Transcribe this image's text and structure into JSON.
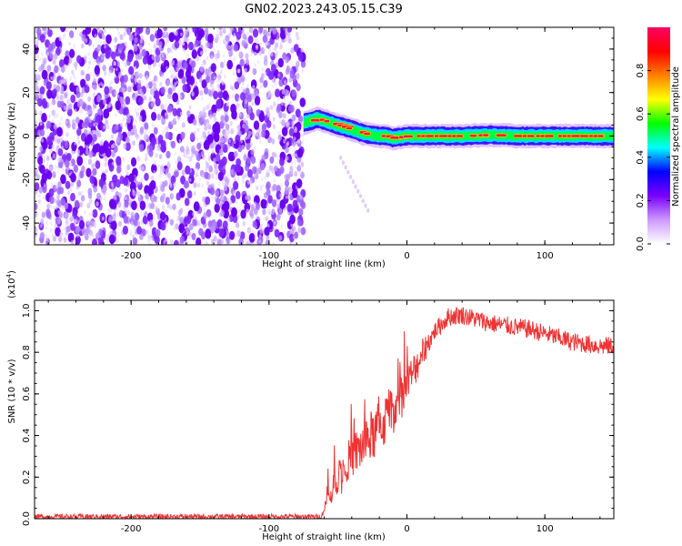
{
  "title": "GN02.2023.243.05.15.C39",
  "chart_data": [
    {
      "type": "heatmap",
      "xlabel": "Height of straight line (km)",
      "ylabel": "Frequency (Hz)",
      "xlim": [
        -270,
        150
      ],
      "ylim": [
        -50,
        50
      ],
      "xticks": [
        -200,
        -100,
        0,
        100
      ],
      "yticks": [
        -40,
        -20,
        0,
        20,
        40
      ],
      "noise_region_x": [
        -270,
        -75
      ],
      "signal_trace": {
        "x": [
          -75,
          -70,
          -65,
          -60,
          -55,
          -50,
          -45,
          -40,
          -35,
          -30,
          -25,
          -20,
          -15,
          -10,
          0,
          20,
          40,
          60,
          80,
          100,
          120,
          150
        ],
        "y": [
          6,
          7,
          8,
          7,
          6,
          5,
          4,
          3,
          2,
          1,
          0.5,
          0,
          0,
          -1,
          0,
          0,
          0,
          0.5,
          0,
          0,
          0,
          0
        ]
      },
      "colorbar": {
        "label": "Normalized spectral amplitude",
        "range": [
          0,
          1
        ],
        "ticks": [
          "0.0",
          "0.2",
          "0.4",
          "0.6",
          "0.8"
        ],
        "colors": [
          "#ffffff",
          "#cc99ff",
          "#7a00ff",
          "#0000ff",
          "#00ffff",
          "#00ff00",
          "#ffff00",
          "#ff8000",
          "#ff0000",
          "#ff0066"
        ]
      },
      "grid": false
    },
    {
      "type": "line",
      "xlabel": "Height of straight line (km)",
      "ylabel": "SNR (10 * v/v)",
      "y_multiplier": "(x10",
      "y_multiplier_exp": "4",
      "y_multiplier_close": ")",
      "xlim": [
        -270,
        150
      ],
      "ylim": [
        0,
        1.05
      ],
      "xticks": [
        -200,
        -100,
        0,
        100
      ],
      "yticks": [
        "0.0",
        "0.2",
        "0.4",
        "0.6",
        "0.8",
        "1.0"
      ],
      "line_color": "#ee3333",
      "series": [
        {
          "x": [
            -270,
            -200,
            -100,
            -62,
            -58,
            -55,
            -50,
            -45,
            -40,
            -35,
            -30,
            -25,
            -20,
            -15,
            -10,
            -5,
            0,
            10,
            20,
            30,
            40,
            50,
            60,
            70,
            80,
            90,
            100,
            110,
            120,
            130,
            140,
            150
          ],
          "y": [
            0.01,
            0.01,
            0.01,
            0.01,
            0.08,
            0.12,
            0.2,
            0.26,
            0.3,
            0.33,
            0.37,
            0.4,
            0.44,
            0.48,
            0.53,
            0.58,
            0.64,
            0.78,
            0.9,
            0.97,
            0.98,
            0.96,
            0.94,
            0.93,
            0.92,
            0.91,
            0.89,
            0.87,
            0.85,
            0.84,
            0.83,
            0.83
          ]
        }
      ],
      "grid": false
    }
  ]
}
